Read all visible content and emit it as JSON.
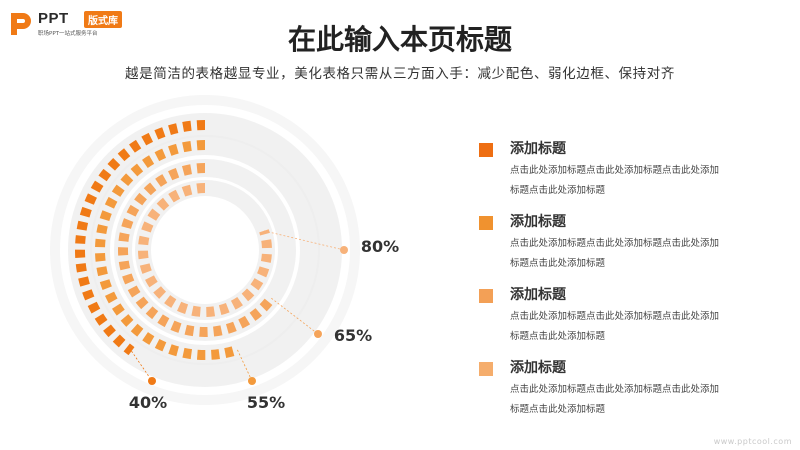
{
  "logo": {
    "brand": "PPT",
    "tag": "版式库",
    "slogan": "职场PPT一站式服务平台",
    "colors": {
      "mark": "#f07a16",
      "text": "#2b2b2b"
    }
  },
  "header": {
    "title": "在此输入本页标题",
    "subtitle": "越是简洁的表格越显专业，美化表格只需从三方面入手：减少配色、弱化边框、保持对齐"
  },
  "chart_data": {
    "type": "radial-bar",
    "unit": "%",
    "series": [
      {
        "value": 40,
        "label": "40%",
        "color": "#f07a16"
      },
      {
        "value": 55,
        "label": "55%",
        "color": "#f39a3c"
      },
      {
        "value": 65,
        "label": "65%",
        "color": "#f5a45a"
      },
      {
        "value": 80,
        "label": "80%",
        "color": "#f7b27a"
      }
    ],
    "track_color": "#ececec"
  },
  "legend": [
    {
      "title": "添加标题",
      "desc": "点击此处添加标题点击此处添加标题点击此处添加标题点击此处添加标题",
      "color": "#ee6e12"
    },
    {
      "title": "添加标题",
      "desc": "点击此处添加标题点击此处添加标题点击此处添加标题点击此处添加标题",
      "color": "#f0922f"
    },
    {
      "title": "添加标题",
      "desc": "点击此处添加标题点击此处添加标题点击此处添加标题点击此处添加标题",
      "color": "#f3a056"
    },
    {
      "title": "添加标题",
      "desc": "点击此处添加标题点击此处添加标题点击此处添加标题点击此处添加标题",
      "color": "#f5ad6c"
    }
  ],
  "footer": {
    "url": "www.pptcool.com"
  }
}
